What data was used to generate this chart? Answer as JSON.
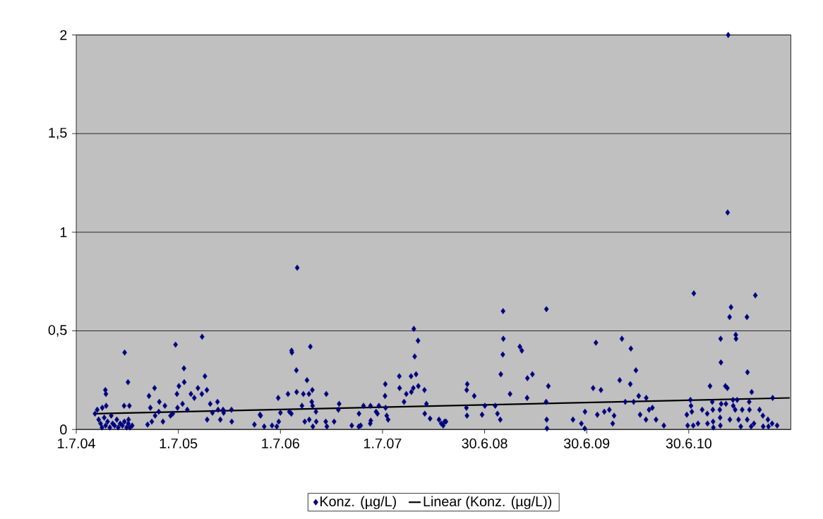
{
  "chart_data": {
    "type": "scatter",
    "grid": "y",
    "legend": "bottom",
    "xlim": [
      "2004-07-01",
      "2011-06-30"
    ],
    "xticks": [
      {
        "value": "2004-07-01",
        "label": "1.7.04"
      },
      {
        "value": "2005-07-01",
        "label": "1.7.05"
      },
      {
        "value": "2006-07-01",
        "label": "1.7.06"
      },
      {
        "value": "2007-07-01",
        "label": "1.7.07"
      },
      {
        "value": "2008-06-30",
        "label": "30.6.08"
      },
      {
        "value": "2009-06-30",
        "label": "30.6.09"
      },
      {
        "value": "2010-06-30",
        "label": "30.6.10"
      }
    ],
    "ylim": [
      0,
      2
    ],
    "yticks": [
      0,
      {
        "value": 0.5,
        "label": "0,5"
      },
      1,
      {
        "value": 1.5,
        "label": "1,5"
      },
      2
    ],
    "series": [
      {
        "name": "Konz. (µg/L)",
        "marker": "diamond",
        "color": "#000080",
        "x": [
          "2004-09-06",
          "2004-09-14",
          "2004-09-19",
          "2004-09-26",
          "2004-10-01",
          "2004-10-02",
          "2004-10-09",
          "2004-10-14",
          "2004-10-13",
          "2004-10-15",
          "2004-10-16",
          "2004-10-21",
          "2004-10-29",
          "2004-11-03",
          "2004-11-08",
          "2004-11-15",
          "2004-11-23",
          "2004-11-28",
          "2004-12-05",
          "2004-12-13",
          "2004-12-20",
          "2004-12-21",
          "2004-12-19",
          "2004-12-28",
          "2005-01-02",
          "2005-01-03",
          "2005-01-04",
          "2005-01-07",
          "2005-01-09",
          "2005-01-17",
          "2005-03-13",
          "2005-03-18",
          "2005-03-23",
          "2005-03-28",
          "2005-04-07",
          "2005-04-09",
          "2005-04-22",
          "2005-04-24",
          "2005-05-07",
          "2005-05-14",
          "2005-06-03",
          "2005-06-11",
          "2005-06-21",
          "2005-06-26",
          "2005-06-28",
          "2005-07-03",
          "2005-07-16",
          "2005-07-21",
          "2005-07-22",
          "2005-08-02",
          "2005-08-15",
          "2005-08-27",
          "2005-09-09",
          "2005-09-24",
          "2005-09-23",
          "2005-10-04",
          "2005-10-11",
          "2005-10-12",
          "2005-10-23",
          "2005-10-31",
          "2005-11-18",
          "2005-11-20",
          "2005-11-28",
          "2005-12-08",
          "2005-12-10",
          "2006-01-07",
          "2006-01-08",
          "2006-03-30",
          "2006-04-19",
          "2006-04-21",
          "2006-05-04",
          "2006-06-01",
          "2006-06-18",
          "2006-06-23",
          "2006-06-25",
          "2006-07-01",
          "2006-07-28",
          "2006-08-02",
          "2006-08-10",
          "2006-08-11",
          "2006-08-09",
          "2006-08-27",
          "2006-08-28",
          "2006-08-30",
          "2006-09-16",
          "2006-09-21",
          "2006-09-26",
          "2006-10-04",
          "2006-10-11",
          "2006-10-12",
          "2006-10-16",
          "2006-10-21",
          "2006-10-23",
          "2006-10-24",
          "2006-10-25",
          "2006-11-05",
          "2006-11-06",
          "2006-12-10",
          "2006-12-12",
          "2006-12-14",
          "2007-01-09",
          "2007-01-24",
          "2007-01-27",
          "2007-03-13",
          "2007-04-07",
          "2007-04-08",
          "2007-04-14",
          "2007-04-24",
          "2007-05-19",
          "2007-05-20",
          "2007-05-18",
          "2007-06-08",
          "2007-06-13",
          "2007-06-18",
          "2007-07-11",
          "2007-07-10",
          "2007-07-12",
          "2007-07-16",
          "2007-07-21",
          "2007-08-30",
          "2007-08-31",
          "2007-09-16",
          "2007-09-24",
          "2007-10-11",
          "2007-10-12",
          "2007-10-19",
          "2007-10-21",
          "2007-10-24",
          "2007-10-29",
          "2007-11-05",
          "2007-11-06",
          "2007-11-28",
          "2007-11-29",
          "2007-12-05",
          "2007-12-18",
          "2008-01-19",
          "2008-01-27",
          "2008-02-03",
          "2008-02-08",
          "2008-02-13",
          "2008-04-27",
          "2008-04-26",
          "2008-04-28",
          "2008-04-29",
          "2008-05-24",
          "2008-06-21",
          "2008-07-01",
          "2008-08-07",
          "2008-08-15",
          "2008-08-25",
          "2008-08-27",
          "2008-09-04",
          "2008-09-05",
          "2008-09-03",
          "2008-09-29",
          "2008-11-03",
          "2008-11-10",
          "2008-11-30",
          "2008-11-29",
          "2008-12-18",
          "2009-02-06",
          "2009-02-05",
          "2009-02-07",
          "2009-02-08",
          "2009-02-13",
          "2009-05-12",
          "2009-06-11",
          "2009-06-23",
          "2009-06-24",
          "2009-07-23",
          "2009-08-02",
          "2009-08-07",
          "2009-08-20",
          "2009-09-01",
          "2009-09-19",
          "2009-10-01",
          "2009-10-06",
          "2009-10-26",
          "2009-11-03",
          "2009-11-15",
          "2009-12-03",
          "2009-12-05",
          "2009-12-15",
          "2009-12-23",
          "2010-01-02",
          "2010-01-07",
          "2010-01-29",
          "2010-01-28",
          "2010-02-08",
          "2010-02-20",
          "2010-03-05",
          "2010-04-02",
          "2010-06-23",
          "2010-06-26",
          "2010-07-06",
          "2010-07-08",
          "2010-07-11",
          "2010-07-16",
          "2010-07-18",
          "2010-08-02",
          "2010-08-17",
          "2010-09-04",
          "2010-09-05",
          "2010-09-14",
          "2010-09-22",
          "2010-09-24",
          "2010-09-25",
          "2010-09-26",
          "2010-10-19",
          "2010-10-20",
          "2010-10-21",
          "2010-10-22",
          "2010-10-23",
          "2010-10-24",
          "2010-11-08",
          "2010-11-10",
          "2010-11-15",
          "2010-11-16",
          "2010-11-18",
          "2010-11-23",
          "2010-11-24",
          "2010-11-28",
          "2010-12-05",
          "2010-12-06",
          "2010-12-13",
          "2010-12-15",
          "2010-12-16",
          "2010-12-20",
          "2010-12-25",
          "2011-01-02",
          "2011-01-07",
          "2011-01-24",
          "2011-01-25",
          "2011-01-26",
          "2011-02-01",
          "2011-02-02",
          "2011-02-08",
          "2011-02-10",
          "2011-02-18",
          "2011-02-23",
          "2011-03-10",
          "2011-03-22",
          "2011-03-23",
          "2011-04-09",
          "2011-04-11",
          "2011-04-24",
          "2011-04-26",
          "2011-05-12"
        ],
        "values": [
          0.08,
          0.1,
          0.05,
          0.03,
          0.01,
          0.11,
          0.06,
          0.02,
          0.2,
          0.18,
          0.12,
          0.04,
          0.01,
          0.07,
          0.03,
          0.02,
          0.05,
          0.01,
          0.03,
          0.02,
          0.04,
          0.39,
          0.12,
          0.01,
          0.24,
          0.03,
          0.05,
          0.12,
          0.01,
          0.02,
          0.025,
          0.17,
          0.11,
          0.04,
          0.21,
          0.07,
          0.09,
          0.14,
          0.04,
          0.12,
          0.07,
          0.08,
          0.43,
          0.18,
          0.11,
          0.22,
          0.13,
          0.31,
          0.24,
          0.1,
          0.18,
          0.16,
          0.21,
          0.47,
          0.18,
          0.27,
          0.2,
          0.05,
          0.13,
          0.085,
          0.14,
          0.1,
          0.05,
          0.1,
          0.085,
          0.1,
          0.04,
          0.025,
          0.075,
          0.07,
          0.015,
          0.02,
          0.015,
          0.16,
          0.04,
          0.085,
          0.18,
          0.09,
          0.4,
          0.39,
          0.08,
          0.3,
          0.19,
          0.82,
          0.12,
          0.18,
          0.04,
          0.25,
          0.18,
          0.05,
          0.42,
          0.14,
          0.2,
          0.12,
          0.015,
          0.09,
          0.04,
          0.04,
          0.18,
          0.015,
          0.04,
          0.1,
          0.13,
          0.02,
          0.015,
          0.08,
          0.02,
          0.12,
          0.12,
          0.045,
          0.03,
          0.09,
          0.08,
          0.12,
          0.23,
          0.17,
          0.11,
          0.07,
          0.05,
          0.27,
          0.21,
          0.14,
          0.18,
          0.27,
          0.19,
          0.21,
          0.51,
          0.37,
          0.28,
          0.45,
          0.22,
          0.2,
          0.08,
          0.13,
          0.055,
          0.05,
          0.03,
          0.02,
          0.04,
          0.04,
          0.2,
          0.11,
          0.07,
          0.23,
          0.17,
          0.075,
          0.12,
          0.12,
          0.08,
          0.05,
          0.28,
          0.6,
          0.46,
          0.38,
          0.18,
          0.42,
          0.4,
          0.26,
          0.16,
          0.28,
          0.61,
          0.14,
          0.05,
          0.005,
          0.22,
          0.05,
          0.03,
          0.005,
          0.09,
          0.21,
          0.44,
          0.075,
          0.2,
          0.09,
          0.1,
          0.03,
          0.07,
          0.25,
          0.46,
          0.14,
          0.23,
          0.41,
          0.14,
          0.3,
          0.17,
          0.075,
          0.16,
          0.05,
          0.1,
          0.11,
          0.05,
          0.02,
          0.075,
          0.02,
          0.15,
          0.12,
          0.09,
          0.02,
          0.69,
          0.03,
          0.1,
          0.08,
          0.03,
          0.22,
          0.14,
          0.1,
          0.04,
          0.01,
          0.1,
          0.06,
          0.02,
          0.46,
          0.34,
          0.13,
          0.22,
          0.13,
          0.21,
          1.1,
          2.0,
          0.57,
          0.05,
          0.62,
          0.15,
          0.12,
          0.1,
          0.48,
          0.46,
          0.15,
          0.05,
          0.015,
          0.1,
          0.57,
          0.05,
          0.29,
          0.14,
          0.1,
          0.015,
          0.19,
          0.03,
          0.68,
          0.1,
          0.07,
          0.015,
          0.05,
          0.015,
          0.03,
          0.16,
          0.02
        ]
      },
      {
        "name": "Linear (Konz. (µg/L))",
        "type": "line",
        "marker": "none",
        "color": "#000000",
        "x": [
          "2004-09-06",
          "2011-06-26"
        ],
        "values": [
          0.08,
          0.16
        ]
      }
    ]
  }
}
